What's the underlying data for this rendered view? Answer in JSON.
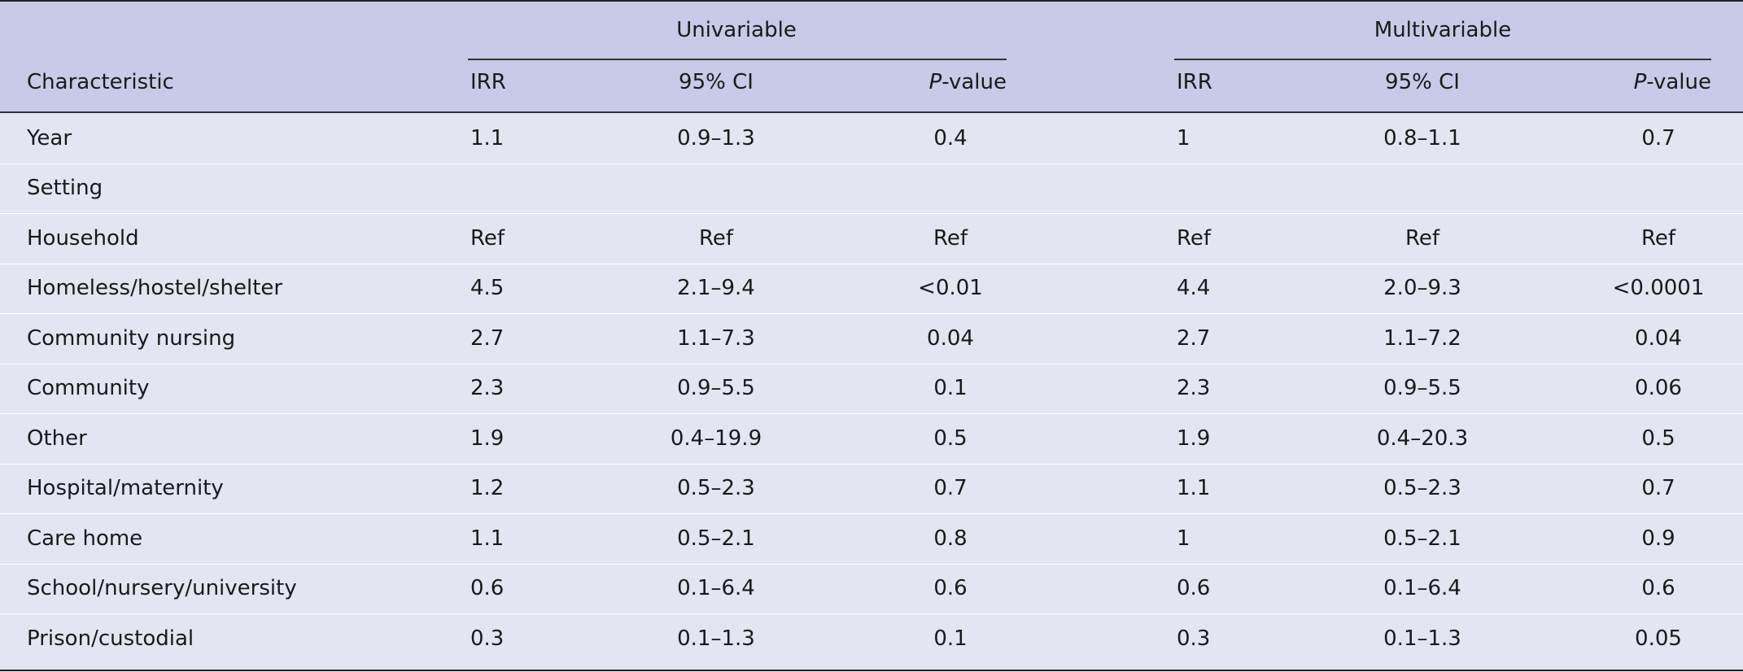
{
  "header": {
    "groups": [
      "Univariable",
      "Multivariable"
    ],
    "columns": {
      "characteristic": "Characteristic",
      "uni_irr": "IRR",
      "uni_ci": "95% CI",
      "uni_p_prefix": "P",
      "uni_p_suffix": "-value",
      "multi_irr": "IRR",
      "multi_ci": "95% CI",
      "multi_p_prefix": "P",
      "multi_p_suffix": "-value"
    }
  },
  "rows": [
    {
      "label": "Year",
      "uni_irr": "1.1",
      "uni_ci": "0.9–1.3",
      "uni_p": "0.4",
      "multi_irr": "1",
      "multi_ci": "0.8–1.1",
      "multi_p": "0.7"
    },
    {
      "label": "Setting",
      "uni_irr": "",
      "uni_ci": "",
      "uni_p": "",
      "multi_irr": "",
      "multi_ci": "",
      "multi_p": ""
    },
    {
      "label": "Household",
      "uni_irr": "Ref",
      "uni_ci": "Ref",
      "uni_p": "Ref",
      "multi_irr": "Ref",
      "multi_ci": "Ref",
      "multi_p": "Ref"
    },
    {
      "label": "Homeless/hostel/shelter",
      "uni_irr": "4.5",
      "uni_ci": "2.1–9.4",
      "uni_p": "<0.01",
      "multi_irr": "4.4",
      "multi_ci": "2.0–9.3",
      "multi_p": "<0.0001"
    },
    {
      "label": "Community nursing",
      "uni_irr": "2.7",
      "uni_ci": "1.1–7.3",
      "uni_p": "0.04",
      "multi_irr": "2.7",
      "multi_ci": "1.1–7.2",
      "multi_p": "0.04"
    },
    {
      "label": "Community",
      "uni_irr": "2.3",
      "uni_ci": "0.9–5.5",
      "uni_p": "0.1",
      "multi_irr": "2.3",
      "multi_ci": "0.9–5.5",
      "multi_p": "0.06"
    },
    {
      "label": "Other",
      "uni_irr": "1.9",
      "uni_ci": "0.4–19.9",
      "uni_p": "0.5",
      "multi_irr": "1.9",
      "multi_ci": "0.4–20.3",
      "multi_p": "0.5"
    },
    {
      "label": "Hospital/maternity",
      "uni_irr": "1.2",
      "uni_ci": "0.5–2.3",
      "uni_p": "0.7",
      "multi_irr": "1.1",
      "multi_ci": "0.5–2.3",
      "multi_p": "0.7"
    },
    {
      "label": "Care home",
      "uni_irr": "1.1",
      "uni_ci": "0.5–2.1",
      "uni_p": "0.8",
      "multi_irr": "1",
      "multi_ci": "0.5–2.1",
      "multi_p": "0.9"
    },
    {
      "label": "School/nursery/university",
      "uni_irr": "0.6",
      "uni_ci": "0.1–6.4",
      "uni_p": "0.6",
      "multi_irr": "0.6",
      "multi_ci": "0.1–6.4",
      "multi_p": "0.6"
    },
    {
      "label": "Prison/custodial",
      "uni_irr": "0.3",
      "uni_ci": "0.1–1.3",
      "uni_p": "0.1",
      "multi_irr": "0.3",
      "multi_ci": "0.1–1.3",
      "multi_p": "0.05"
    }
  ]
}
